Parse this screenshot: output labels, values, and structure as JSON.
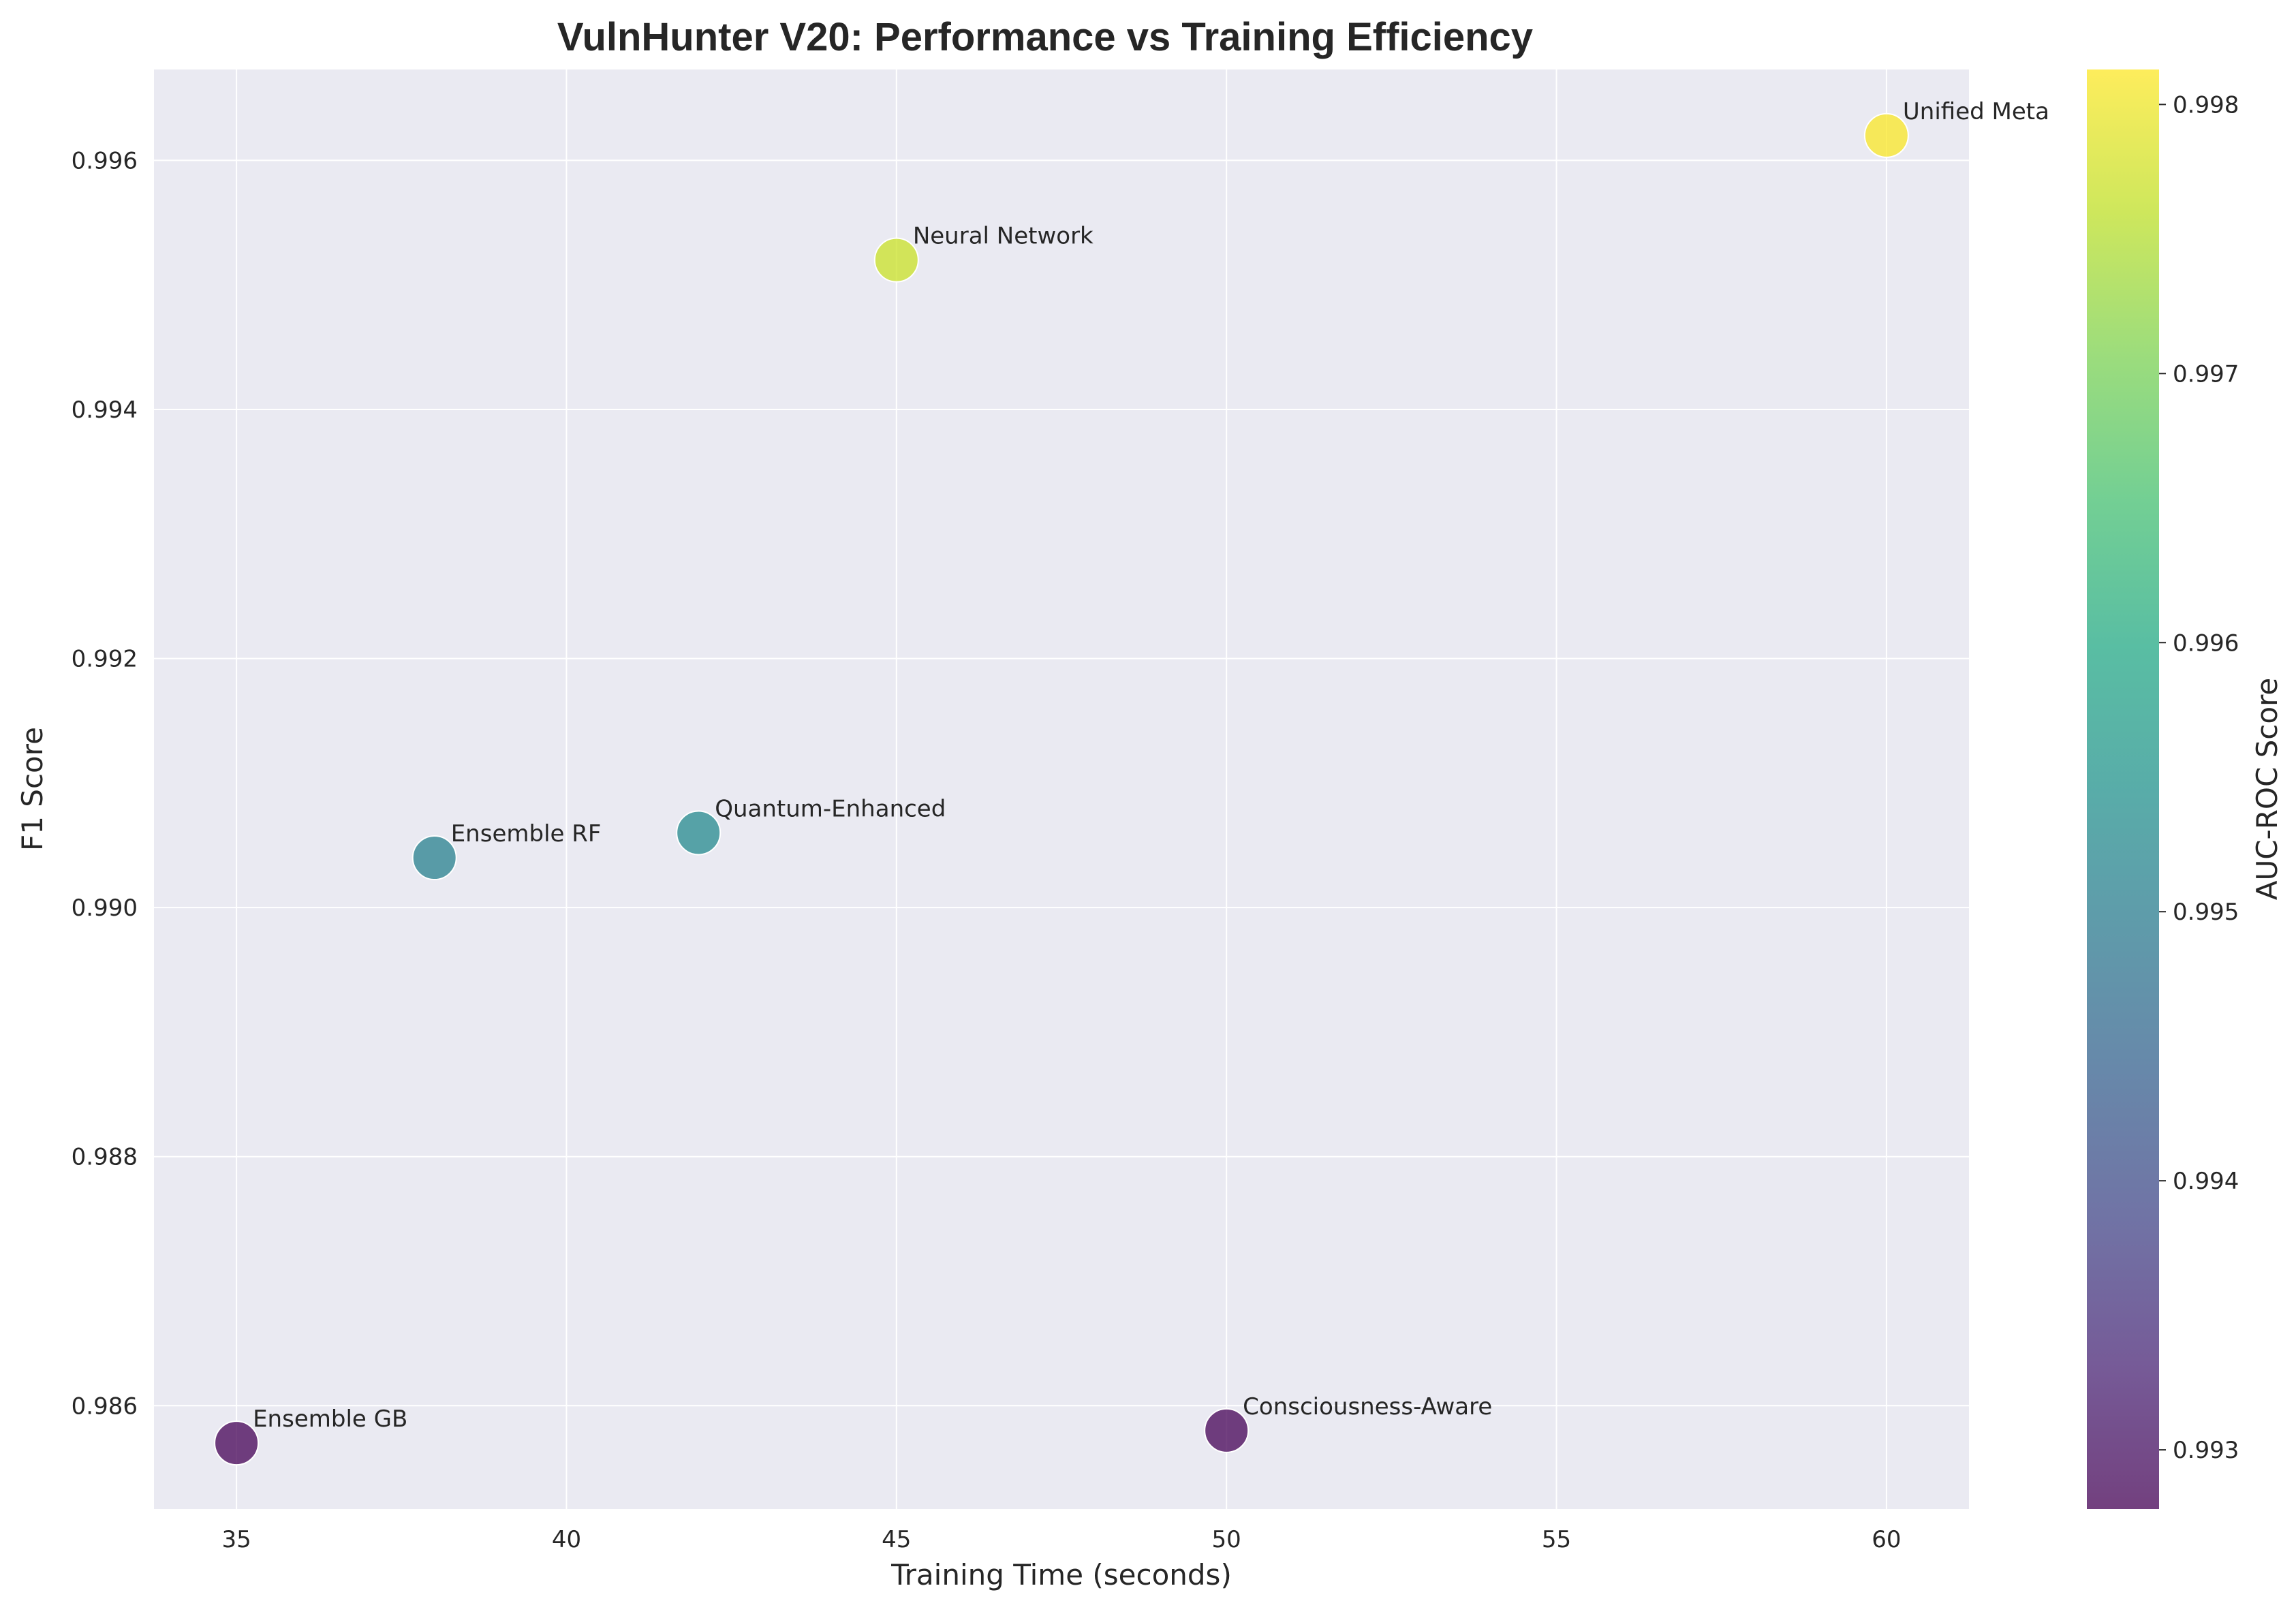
{
  "chart_data": {
    "type": "scatter",
    "title": "VulnHunter V20: Performance vs Training Efficiency",
    "xlabel": "Training Time (seconds)",
    "ylabel": "F1 Score",
    "colorbar_label": "AUC-ROC Score",
    "xlim": [
      33.75,
      61.25
    ],
    "ylim": [
      0.98517,
      0.99673
    ],
    "x_ticks": [
      35,
      40,
      45,
      50,
      55,
      60
    ],
    "y_ticks": [
      0.986,
      0.988,
      0.99,
      0.992,
      0.994,
      0.996
    ],
    "colorbar_range": [
      0.99278,
      0.99813
    ],
    "colorbar_ticks": [
      0.993,
      0.994,
      0.995,
      0.996,
      0.997,
      0.998
    ],
    "grid": true,
    "colormap": "viridis",
    "points": [
      {
        "label": "Ensemble GB",
        "x": 35,
        "y": 0.9857,
        "auc": 0.9928
      },
      {
        "label": "Ensemble RF",
        "x": 38,
        "y": 0.9904,
        "auc": 0.9951
      },
      {
        "label": "Quantum-Enhanced",
        "x": 42,
        "y": 0.9906,
        "auc": 0.9953
      },
      {
        "label": "Neural Network",
        "x": 45,
        "y": 0.9952,
        "auc": 0.9977
      },
      {
        "label": "Consciousness-Aware",
        "x": 50,
        "y": 0.9858,
        "auc": 0.9928
      },
      {
        "label": "Unified Meta",
        "x": 60,
        "y": 0.9962,
        "auc": 0.9981
      }
    ]
  },
  "colors": {
    "plot_background": "#eaeaf2",
    "grid": "#ffffff",
    "text": "#262626"
  }
}
